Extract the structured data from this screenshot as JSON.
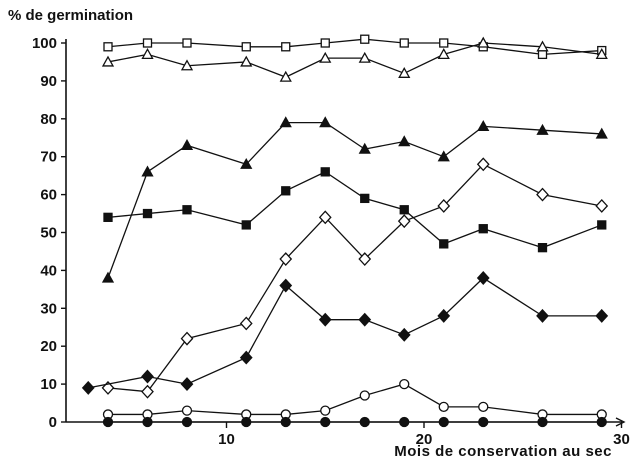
{
  "chart_data": {
    "type": "line",
    "ylabel": "% de germination",
    "xlabel": "Mois de conservation au sec",
    "xlim": [
      0,
      30
    ],
    "ylim": [
      0,
      100
    ],
    "x_ticks": [
      10,
      20,
      30
    ],
    "y_ticks": [
      0,
      10,
      20,
      30,
      40,
      50,
      60,
      70,
      80,
      90,
      100
    ],
    "grid": false,
    "series": [
      {
        "marker": "square-open",
        "x": [
          4,
          6,
          8,
          11,
          13,
          15,
          17,
          19,
          21,
          23,
          26,
          29
        ],
        "y": [
          99,
          100,
          100,
          99,
          99,
          100,
          101,
          100,
          100,
          99,
          97,
          98
        ]
      },
      {
        "marker": "triangle-open",
        "x": [
          4,
          6,
          8,
          11,
          13,
          15,
          17,
          19,
          21,
          23,
          26,
          29
        ],
        "y": [
          95,
          97,
          94,
          95,
          91,
          96,
          96,
          92,
          97,
          100,
          99,
          97
        ]
      },
      {
        "marker": "triangle-filled",
        "x": [
          4,
          6,
          8,
          11,
          13,
          15,
          17,
          19,
          21,
          23,
          26,
          29
        ],
        "y": [
          38,
          66,
          73,
          68,
          79,
          79,
          72,
          74,
          70,
          78,
          77,
          76
        ]
      },
      {
        "marker": "square-filled",
        "x": [
          4,
          6,
          8,
          11,
          13,
          15,
          17,
          19,
          21,
          23,
          26,
          29
        ],
        "y": [
          54,
          55,
          56,
          52,
          61,
          66,
          59,
          56,
          47,
          51,
          46,
          52
        ]
      },
      {
        "marker": "diamond-open",
        "x": [
          4,
          6,
          8,
          11,
          13,
          15,
          17,
          19,
          21,
          23,
          26,
          29
        ],
        "y": [
          9,
          8,
          22,
          26,
          43,
          54,
          43,
          53,
          57,
          68,
          60,
          57
        ]
      },
      {
        "marker": "diamond-filled",
        "x": [
          3,
          6,
          8,
          11,
          13,
          15,
          17,
          19,
          21,
          23,
          26,
          29
        ],
        "y": [
          9,
          12,
          10,
          17,
          36,
          27,
          27,
          23,
          28,
          38,
          28,
          28
        ]
      },
      {
        "marker": "circle-open",
        "x": [
          4,
          6,
          8,
          11,
          13,
          15,
          17,
          19,
          21,
          23,
          26,
          29
        ],
        "y": [
          2,
          2,
          3,
          2,
          2,
          3,
          7,
          10,
          4,
          4,
          2,
          2
        ]
      },
      {
        "marker": "circle-filled",
        "x": [
          4,
          6,
          8,
          11,
          13,
          15,
          17,
          19,
          21,
          23,
          26,
          29
        ],
        "y": [
          0,
          0,
          0,
          0,
          0,
          0,
          0,
          0,
          0,
          0,
          0,
          0
        ]
      }
    ]
  }
}
